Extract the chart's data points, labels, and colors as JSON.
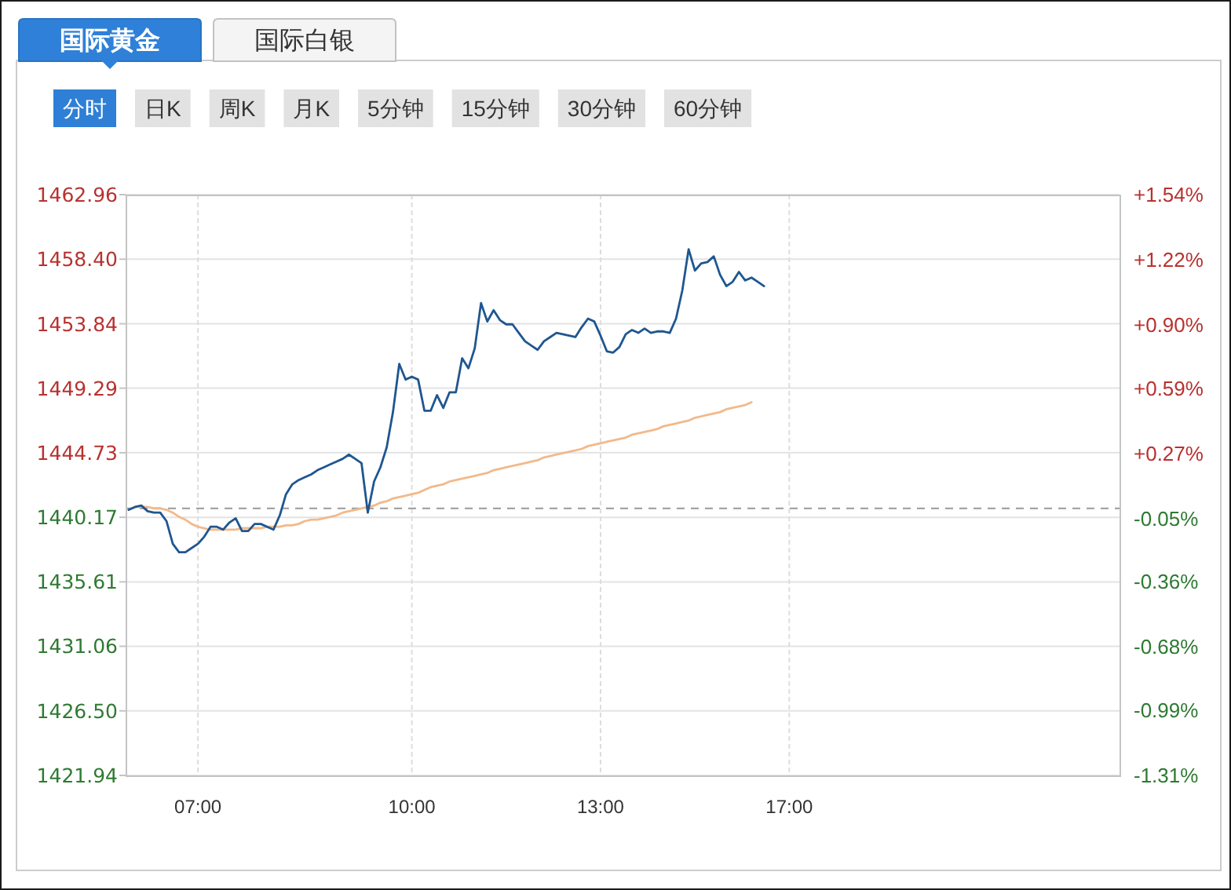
{
  "chart_data": {
    "type": "line",
    "title": "国际黄金",
    "annotations": [
      "国际白银",
      "分时",
      "日K",
      "周K",
      "月K",
      "5分钟",
      "15分钟",
      "30分钟",
      "60分钟"
    ],
    "categories": [
      null,
      null,
      null,
      null,
      null,
      null,
      null,
      null,
      null,
      null,
      null,
      "07:00",
      null,
      null,
      null,
      null,
      null,
      null,
      null,
      null,
      null,
      null,
      null,
      null,
      null,
      null,
      null,
      null,
      null,
      null,
      null,
      null,
      null,
      null,
      null,
      null,
      null,
      null,
      null,
      null,
      null,
      null,
      null,
      null,
      null,
      "10:00",
      null,
      null,
      null,
      null,
      null,
      null,
      null,
      null,
      null,
      null,
      null,
      null,
      null,
      null,
      null,
      null,
      null,
      null,
      null,
      null,
      null,
      null,
      null,
      null,
      null,
      null,
      null,
      null,
      null,
      "13:00",
      null,
      null,
      null,
      null,
      null,
      null,
      null,
      null,
      null,
      null,
      null,
      null,
      null,
      null,
      null,
      null,
      null,
      null,
      null,
      null,
      null,
      null,
      null,
      null,
      null,
      null,
      null,
      null,
      null,
      "17:00",
      null,
      null,
      null,
      null,
      null,
      null,
      null,
      null,
      null,
      null,
      null,
      null,
      null,
      null,
      null,
      null,
      null,
      null,
      null,
      null,
      null,
      null,
      null,
      null,
      null,
      null,
      null,
      null,
      null,
      null,
      null,
      null,
      null,
      null,
      null,
      null,
      null,
      null,
      null,
      null,
      null,
      null,
      null,
      null,
      null,
      null,
      null,
      null,
      null,
      null,
      null,
      null
    ],
    "series": [
      {
        "color": "#f2b98a",
        "values": [
          1440.7,
          1440.9,
          1440.9,
          1440.9,
          1440.8,
          1440.8,
          1440.7,
          1440.5,
          1440.2,
          1440.0,
          1439.7,
          1439.5,
          1439.4,
          1439.3,
          1439.3,
          1439.3,
          1439.3,
          1439.3,
          1439.4,
          1439.4,
          1439.4,
          1439.4,
          1439.5,
          1439.5,
          1439.5,
          1439.6,
          1439.6,
          1439.7,
          1439.9,
          1440.0,
          1440.0,
          1440.1,
          1440.2,
          1440.3,
          1440.5,
          1440.6,
          1440.7,
          1440.8,
          1440.9,
          1441.0,
          1441.2,
          1441.3,
          1441.5,
          1441.6,
          1441.7,
          1441.8,
          1441.9,
          1442.1,
          1442.3,
          1442.4,
          1442.5,
          1442.7,
          1442.8,
          1442.9,
          1443.0,
          1443.1,
          1443.2,
          1443.3,
          1443.5,
          1443.6,
          1443.7,
          1443.8,
          1443.9,
          1444.0,
          1444.1,
          1444.2,
          1444.4,
          1444.5,
          1444.6,
          1444.7,
          1444.8,
          1444.9,
          1445.0,
          1445.2,
          1445.3,
          1445.4,
          1445.5,
          1445.6,
          1445.7,
          1445.8,
          1446.0,
          1446.1,
          1446.2,
          1446.3,
          1446.4,
          1446.6,
          1446.7,
          1446.8,
          1446.9,
          1447.0,
          1447.2,
          1447.3,
          1447.4,
          1447.5,
          1447.6,
          1447.8,
          1447.9,
          1448.0,
          1448.1,
          1448.3,
          null,
          null,
          null,
          null,
          null,
          null,
          null,
          null,
          null,
          null,
          null,
          null,
          null,
          null,
          null,
          null,
          null,
          null,
          null,
          null,
          null,
          null,
          null,
          null,
          null,
          null,
          null,
          null,
          null,
          null,
          null,
          null,
          null,
          null,
          null,
          null,
          null,
          null,
          null,
          null,
          null,
          null,
          null,
          null,
          null,
          null,
          null,
          null,
          null,
          null,
          null,
          null,
          null,
          null,
          null,
          null,
          null,
          null
        ]
      },
      {
        "color": "#1f5690",
        "values": [
          1440.7,
          1440.9,
          1441.0,
          1440.6,
          1440.5,
          1440.5,
          1439.9,
          1438.3,
          1437.7,
          1437.7,
          1438.0,
          1438.3,
          1438.8,
          1439.5,
          1439.5,
          1439.3,
          1439.8,
          1440.1,
          1439.2,
          1439.2,
          1439.7,
          1439.7,
          1439.5,
          1439.3,
          1440.3,
          1441.8,
          1442.5,
          1442.8,
          1443.0,
          1443.2,
          1443.5,
          1443.7,
          1443.9,
          1444.1,
          1444.3,
          1444.6,
          1444.3,
          1444.0,
          1440.5,
          1442.7,
          1443.7,
          1445.1,
          1447.6,
          1451.0,
          1449.9,
          1450.1,
          1449.9,
          1447.7,
          1447.7,
          1448.8,
          1447.9,
          1449.0,
          1449.0,
          1451.4,
          1450.7,
          1452.1,
          1455.3,
          1454.0,
          1454.8,
          1454.1,
          1453.8,
          1453.8,
          1453.2,
          1452.6,
          1452.3,
          1452.0,
          1452.6,
          1452.9,
          1453.2,
          1453.1,
          1453.0,
          1452.9,
          1453.6,
          1454.2,
          1454.0,
          1453.0,
          1451.9,
          1451.8,
          1452.2,
          1453.1,
          1453.4,
          1453.2,
          1453.5,
          1453.2,
          1453.3,
          1453.3,
          1453.2,
          1454.2,
          1456.2,
          1459.1,
          1457.6,
          1458.1,
          1458.2,
          1458.6,
          1457.3,
          1456.5,
          1456.8,
          1457.5,
          1456.9,
          1457.1,
          1456.8,
          1456.5,
          null,
          null,
          null,
          null,
          null,
          null,
          null,
          null,
          null,
          null,
          null,
          null,
          null,
          null,
          null,
          null,
          null,
          null,
          null,
          null,
          null,
          null,
          null,
          null,
          null,
          null,
          null,
          null,
          null,
          null,
          null,
          null,
          null,
          null,
          null,
          null,
          null,
          null,
          null,
          null,
          null,
          null,
          null,
          null,
          null,
          null,
          null,
          null,
          null,
          null,
          null,
          null,
          null,
          null,
          null,
          null
        ]
      }
    ],
    "ylim": [
      1421.94,
      1462.96
    ],
    "yticks": [
      1421.94,
      {
        "value": 1426.5,
        "label": "1426.50"
      },
      1431.06,
      1435.61,
      1440.17,
      1444.73,
      1449.29,
      1453.84,
      {
        "value": 1458.4,
        "label": "1458.40"
      },
      1462.96
    ],
    "y2lim": [
      -1.31,
      1.54
    ],
    "y2ticks": [
      {
        "value": -1.31,
        "label": "-1.31%"
      },
      {
        "value": -0.99,
        "label": "-0.99%"
      },
      {
        "value": -0.68,
        "label": "-0.68%"
      },
      {
        "value": -0.36,
        "label": "-0.36%"
      },
      {
        "value": -0.05,
        "label": "-0.05%"
      },
      {
        "value": 0.27,
        "label": "+0.27%"
      },
      {
        "value": 0.59,
        "label": "+0.59%"
      },
      {
        "value": 0.9,
        "label": "+0.90%"
      },
      {
        "value": 1.22,
        "label": "+1.22%"
      },
      {
        "value": 1.54,
        "label": "+1.54%"
      }
    ],
    "ref_lines": [
      {
        "axis": "y",
        "value": 1440.8,
        "color": "#9a9a9a",
        "line_style": "dashed"
      }
    ],
    "grid": true
  }
}
